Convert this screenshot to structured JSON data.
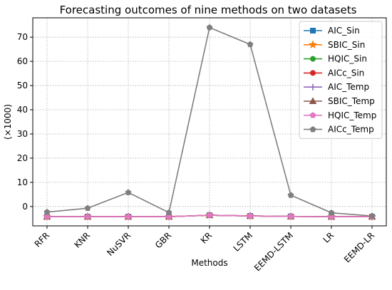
{
  "chart_data": {
    "type": "line",
    "title": "Forecasting outcomes of nine methods on two datasets",
    "xlabel": "Methods",
    "ylabel": "(×1000)",
    "categories": [
      "RFR",
      "KNR",
      "NuSVR",
      "GBR",
      "KR",
      "LSTM",
      "EEMD-LSTM",
      "LR",
      "EEMD-LR"
    ],
    "ylim": [
      -8,
      78
    ],
    "yticks": [
      0,
      10,
      20,
      30,
      40,
      50,
      60,
      70
    ],
    "grid": true,
    "legend_position": "top-right",
    "series": [
      {
        "name": "AIC_Sin",
        "color": "#1f77b4",
        "marker": "square",
        "values": [
          -4.2,
          -4.2,
          -4.2,
          -4.2,
          -3.6,
          -3.9,
          -4.1,
          -4.2,
          -4.2
        ]
      },
      {
        "name": "SBIC_Sin",
        "color": "#ff7f0e",
        "marker": "star",
        "values": [
          -4.2,
          -4.2,
          -4.2,
          -4.2,
          -3.6,
          -3.9,
          -4.1,
          -4.2,
          -4.2
        ]
      },
      {
        "name": "HQIC_Sin",
        "color": "#2ca02c",
        "marker": "circle",
        "values": [
          -4.2,
          -4.2,
          -4.2,
          -4.2,
          -3.6,
          -3.9,
          -4.1,
          -4.2,
          -4.2
        ]
      },
      {
        "name": "AICc_Sin",
        "color": "#d62728",
        "marker": "circle",
        "values": [
          -4.2,
          -4.2,
          -4.2,
          -4.2,
          -3.6,
          -3.9,
          -4.1,
          -4.2,
          -4.2
        ]
      },
      {
        "name": "AIC_Temp",
        "color": "#9467bd",
        "marker": "plus",
        "values": [
          -4.2,
          -4.2,
          -4.2,
          -4.2,
          -3.6,
          -3.9,
          -4.1,
          -4.2,
          -4.2
        ]
      },
      {
        "name": "SBIC_Temp",
        "color": "#8c564b",
        "marker": "triangle",
        "values": [
          -4.2,
          -4.2,
          -4.2,
          -4.2,
          -3.6,
          -3.9,
          -4.1,
          -4.2,
          -4.2
        ]
      },
      {
        "name": "HQIC_Temp",
        "color": "#e377c2",
        "marker": "pentagon",
        "values": [
          -4.2,
          -4.2,
          -4.2,
          -4.2,
          -3.6,
          -3.9,
          -4.1,
          -4.2,
          -4.2
        ]
      },
      {
        "name": "AICc_Temp",
        "color": "#7f7f7f",
        "marker": "pentagon",
        "values": [
          -2.3,
          -0.7,
          5.8,
          -2.5,
          74.0,
          67.0,
          4.7,
          -2.6,
          -3.9
        ]
      }
    ]
  }
}
